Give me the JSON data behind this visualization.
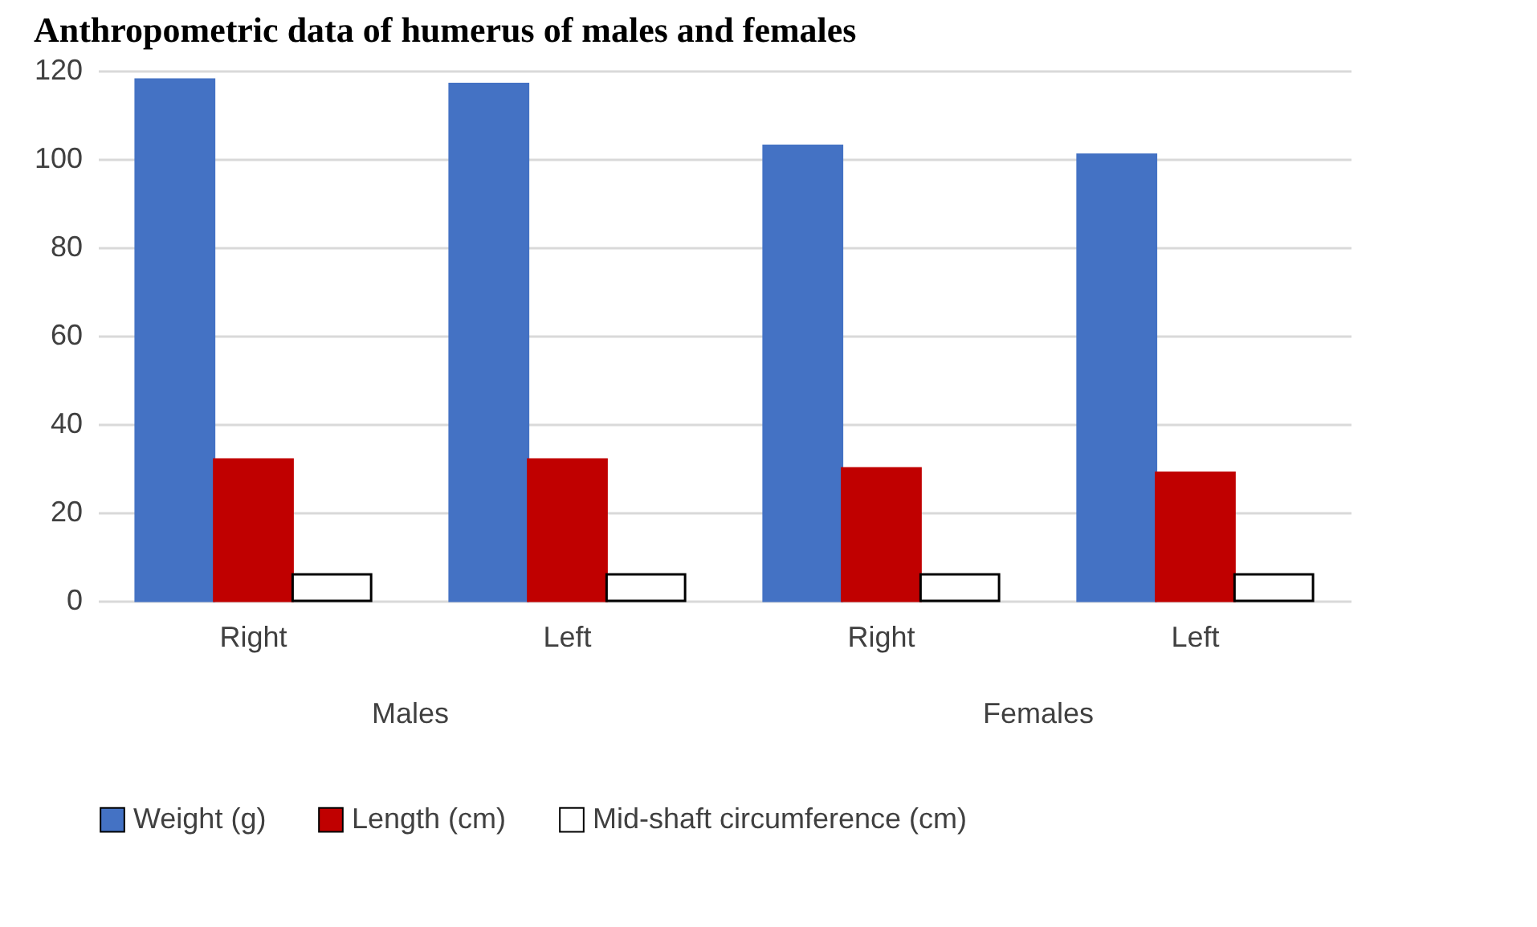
{
  "chart_data": {
    "type": "bar",
    "title": "Anthropometric data of humerus of males and females",
    "categories": [
      "Right",
      "Left",
      "Right",
      "Left"
    ],
    "series": [
      {
        "name": "Weight (g)",
        "color": "#4472c4",
        "values": [
          118,
          117,
          103,
          101
        ]
      },
      {
        "name": "Length (cm)",
        "color": "#c00000",
        "values": [
          32,
          32,
          30,
          29
        ]
      },
      {
        "name": "Mid-shaft circumference (cm)",
        "color": "#ffffff",
        "values": [
          6,
          6,
          6,
          6
        ]
      }
    ],
    "annotations": [
      "Males",
      "Females"
    ],
    "ylim": [
      0,
      120
    ],
    "yticks": [
      0,
      20,
      40,
      60,
      80,
      100,
      120
    ],
    "grid": "y",
    "legend": "bottom"
  }
}
